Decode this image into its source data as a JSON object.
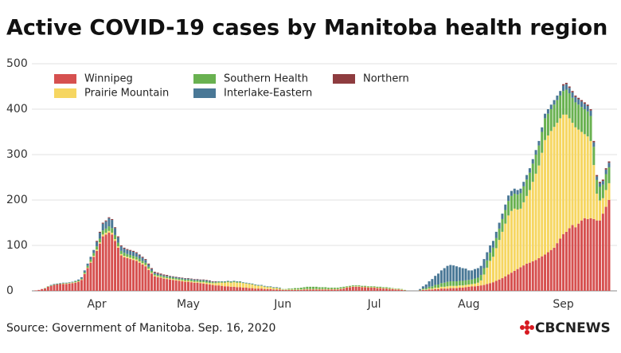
{
  "chart_data": {
    "type": "stacked-bar",
    "title": "Active COVID-19 cases by Manitoba health region",
    "source": "Source: Government of Manitoba. Sep. 16, 2020",
    "logo": "CBCNEWS",
    "ylim": [
      0,
      500
    ],
    "yticks": [
      0,
      100,
      200,
      300,
      400,
      500
    ],
    "grid": true,
    "categories": [
      null,
      null,
      null,
      null,
      null,
      null,
      null,
      null,
      null,
      null,
      null,
      null,
      null,
      null,
      null,
      null,
      null,
      null,
      null,
      null,
      "Apr",
      null,
      null,
      null,
      null,
      null,
      null,
      null,
      null,
      null,
      null,
      null,
      null,
      null,
      null,
      null,
      null,
      null,
      null,
      null,
      null,
      null,
      null,
      null,
      null,
      null,
      null,
      null,
      null,
      null,
      "May",
      null,
      null,
      null,
      null,
      null,
      null,
      null,
      null,
      null,
      null,
      null,
      null,
      null,
      null,
      null,
      null,
      null,
      null,
      null,
      null,
      null,
      null,
      null,
      null,
      null,
      null,
      null,
      null,
      null,
      null,
      "Jun",
      null,
      null,
      null,
      null,
      null,
      null,
      null,
      null,
      null,
      null,
      null,
      null,
      null,
      null,
      null,
      null,
      null,
      null,
      null,
      null,
      null,
      null,
      null,
      null,
      null,
      null,
      null,
      null,
      null,
      "Jul",
      null,
      null,
      null,
      null,
      null,
      null,
      null,
      null,
      null,
      null,
      null,
      null,
      null,
      null,
      null,
      null,
      null,
      null,
      null,
      null,
      null,
      null,
      null,
      null,
      null,
      null,
      null,
      null,
      null,
      null,
      "Aug",
      null,
      null,
      null,
      null,
      null,
      null,
      null,
      null,
      null,
      null,
      null,
      null,
      null,
      null,
      null,
      null,
      null,
      null,
      null,
      null,
      null,
      null,
      null,
      null,
      null,
      null,
      null,
      null,
      null,
      null,
      "Sep",
      null,
      null,
      null,
      null,
      null,
      null,
      null,
      null,
      null,
      null,
      null,
      null,
      null,
      null,
      null
    ],
    "series": [
      {
        "name": "Winnipeg",
        "color": "#d6504f",
        "values": [
          1,
          2,
          4,
          5,
          9,
          11,
          13,
          14,
          15,
          15,
          15,
          16,
          17,
          18,
          20,
          24,
          37,
          50,
          62,
          75,
          88,
          104,
          120,
          124,
          128,
          124,
          110,
          95,
          78,
          74,
          72,
          70,
          68,
          66,
          62,
          58,
          54,
          46,
          38,
          32,
          30,
          29,
          27,
          26,
          25,
          24,
          23,
          22,
          21,
          20,
          20,
          19,
          18,
          18,
          17,
          16,
          15,
          14,
          13,
          12,
          12,
          11,
          10,
          10,
          9,
          9,
          8,
          8,
          7,
          7,
          6,
          6,
          5,
          5,
          5,
          4,
          4,
          4,
          3,
          3,
          3,
          2,
          2,
          2,
          2,
          2,
          2,
          2,
          3,
          3,
          3,
          3,
          3,
          3,
          3,
          3,
          3,
          3,
          3,
          3,
          4,
          5,
          7,
          8,
          9,
          9,
          9,
          8,
          8,
          7,
          7,
          7,
          6,
          6,
          5,
          5,
          4,
          4,
          3,
          3,
          2,
          1,
          0,
          0,
          0,
          0,
          1,
          2,
          2,
          3,
          3,
          4,
          4,
          5,
          5,
          5,
          6,
          6,
          6,
          7,
          7,
          8,
          9,
          10,
          10,
          11,
          12,
          13,
          15,
          17,
          19,
          22,
          25,
          28,
          32,
          36,
          40,
          44,
          48,
          52,
          56,
          60,
          62,
          65,
          68,
          72,
          76,
          80,
          85,
          90,
          95,
          105,
          115,
          125,
          130,
          138,
          145,
          140,
          148,
          155,
          160,
          158,
          160,
          158,
          155,
          155,
          170,
          185,
          200
        ]
      },
      {
        "name": "Prairie Mountain",
        "color": "#f6d661",
        "values": [
          0,
          0,
          0,
          0,
          0,
          0,
          0,
          0,
          0,
          1,
          1,
          1,
          1,
          1,
          1,
          1,
          1,
          1,
          2,
          2,
          3,
          3,
          4,
          4,
          4,
          4,
          4,
          3,
          3,
          3,
          3,
          3,
          3,
          3,
          3,
          3,
          3,
          3,
          2,
          2,
          2,
          2,
          2,
          2,
          2,
          2,
          2,
          2,
          2,
          2,
          2,
          2,
          2,
          2,
          2,
          3,
          3,
          3,
          4,
          5,
          6,
          7,
          8,
          9,
          9,
          10,
          10,
          10,
          10,
          9,
          9,
          8,
          7,
          6,
          6,
          5,
          4,
          4,
          3,
          3,
          2,
          1,
          1,
          1,
          1,
          1,
          1,
          1,
          1,
          1,
          1,
          1,
          1,
          1,
          1,
          1,
          1,
          1,
          1,
          1,
          1,
          1,
          1,
          1,
          1,
          1,
          1,
          1,
          1,
          1,
          1,
          1,
          1,
          1,
          1,
          1,
          1,
          1,
          1,
          1,
          1,
          0,
          0,
          0,
          0,
          0,
          0,
          1,
          1,
          2,
          2,
          3,
          3,
          4,
          4,
          5,
          5,
          5,
          5,
          5,
          5,
          5,
          5,
          5,
          6,
          7,
          11,
          23,
          36,
          49,
          56,
          72,
          87,
          102,
          116,
          130,
          136,
          137,
          131,
          129,
          139,
          149,
          160,
          175,
          190,
          204,
          228,
          252,
          257,
          262,
          266,
          265,
          265,
          263,
          258,
          242,
          225,
          220,
          207,
          195,
          185,
          182,
          170,
          119,
          59,
          44,
          34,
          37,
          37
        ]
      },
      {
        "name": "Southern Health",
        "color": "#69b150",
        "values": [
          0,
          0,
          0,
          1,
          1,
          1,
          1,
          1,
          1,
          1,
          1,
          1,
          1,
          2,
          2,
          2,
          3,
          4,
          5,
          6,
          7,
          8,
          9,
          9,
          10,
          10,
          9,
          8,
          7,
          7,
          6,
          6,
          6,
          6,
          6,
          5,
          5,
          4,
          4,
          3,
          3,
          3,
          3,
          3,
          3,
          3,
          3,
          3,
          3,
          3,
          3,
          3,
          3,
          3,
          3,
          3,
          3,
          3,
          2,
          2,
          2,
          2,
          2,
          2,
          2,
          2,
          2,
          2,
          1,
          1,
          1,
          1,
          1,
          1,
          1,
          1,
          1,
          1,
          1,
          1,
          1,
          1,
          1,
          2,
          2,
          3,
          3,
          4,
          4,
          5,
          5,
          5,
          5,
          4,
          4,
          4,
          3,
          3,
          3,
          3,
          3,
          3,
          2,
          2,
          2,
          2,
          2,
          2,
          2,
          2,
          2,
          2,
          2,
          2,
          2,
          2,
          2,
          1,
          1,
          1,
          1,
          1,
          0,
          0,
          0,
          0,
          1,
          2,
          3,
          4,
          5,
          6,
          7,
          8,
          9,
          10,
          10,
          10,
          10,
          10,
          10,
          10,
          10,
          10,
          11,
          11,
          12,
          14,
          16,
          18,
          20,
          22,
          25,
          28,
          30,
          32,
          33,
          33,
          33,
          34,
          35,
          36,
          38,
          40,
          42,
          44,
          46,
          48,
          48,
          48,
          49,
          50,
          50,
          52,
          55,
          55,
          55,
          55,
          55,
          55,
          55,
          55,
          55,
          40,
          30,
          30,
          30,
          35,
          35
        ]
      },
      {
        "name": "Interlake-Eastern",
        "color": "#4a7896",
        "values": [
          0,
          0,
          0,
          0,
          0,
          1,
          1,
          1,
          1,
          1,
          1,
          1,
          1,
          1,
          2,
          3,
          4,
          5,
          6,
          7,
          10,
          13,
          15,
          16,
          18,
          18,
          15,
          12,
          10,
          9,
          9,
          9,
          9,
          8,
          7,
          7,
          6,
          5,
          4,
          3,
          3,
          2,
          2,
          2,
          2,
          2,
          2,
          2,
          2,
          2,
          2,
          2,
          2,
          2,
          2,
          2,
          2,
          2,
          1,
          1,
          1,
          1,
          1,
          1,
          1,
          1,
          1,
          1,
          1,
          1,
          1,
          1,
          1,
          1,
          1,
          1,
          1,
          1,
          1,
          1,
          1,
          0,
          0,
          0,
          0,
          0,
          0,
          0,
          0,
          0,
          0,
          0,
          0,
          0,
          0,
          0,
          0,
          0,
          0,
          0,
          0,
          0,
          0,
          0,
          0,
          0,
          0,
          0,
          0,
          0,
          0,
          0,
          0,
          0,
          0,
          0,
          0,
          0,
          0,
          0,
          0,
          0,
          0,
          0,
          0,
          0,
          2,
          5,
          8,
          12,
          16,
          20,
          24,
          28,
          32,
          35,
          36,
          35,
          33,
          30,
          28,
          26,
          21,
          20,
          21,
          21,
          20,
          20,
          18,
          16,
          15,
          14,
          13,
          12,
          12,
          12,
          11,
          11,
          10,
          10,
          10,
          10,
          10,
          10,
          10,
          10,
          10,
          10,
          10,
          10,
          10,
          10,
          10,
          12,
          12,
          12,
          12,
          12,
          12,
          12,
          12,
          12,
          12,
          10,
          8,
          8,
          8,
          10,
          10
        ]
      },
      {
        "name": "Northern",
        "color": "#8e3c3f",
        "values": [
          0,
          0,
          0,
          0,
          0,
          0,
          0,
          0,
          0,
          0,
          0,
          0,
          0,
          0,
          0,
          0,
          0,
          0,
          0,
          0,
          2,
          2,
          2,
          2,
          2,
          2,
          2,
          2,
          2,
          2,
          2,
          2,
          2,
          2,
          2,
          2,
          2,
          2,
          2,
          2,
          2,
          2,
          2,
          2,
          1,
          1,
          1,
          1,
          1,
          1,
          1,
          1,
          1,
          1,
          1,
          1,
          1,
          1,
          1,
          1,
          0,
          0,
          0,
          0,
          0,
          0,
          0,
          0,
          0,
          0,
          0,
          0,
          0,
          0,
          0,
          0,
          0,
          0,
          0,
          0,
          0,
          0,
          0,
          0,
          0,
          0,
          0,
          0,
          0,
          0,
          0,
          0,
          0,
          0,
          0,
          0,
          0,
          0,
          0,
          0,
          0,
          0,
          0,
          0,
          0,
          0,
          0,
          0,
          0,
          0,
          0,
          0,
          0,
          0,
          0,
          0,
          0,
          0,
          0,
          0,
          0,
          0,
          0,
          0,
          0,
          0,
          0,
          0,
          0,
          0,
          0,
          0,
          0,
          0,
          0,
          0,
          0,
          0,
          0,
          0,
          0,
          0,
          0,
          0,
          0,
          0,
          0,
          0,
          0,
          0,
          0,
          0,
          0,
          0,
          0,
          0,
          0,
          0,
          0,
          0,
          0,
          0,
          0,
          0,
          0,
          0,
          0,
          0,
          0,
          0,
          0,
          0,
          0,
          3,
          3,
          3,
          3,
          3,
          3,
          3,
          3,
          3,
          3,
          3,
          3,
          3,
          3,
          3,
          3
        ]
      }
    ]
  }
}
